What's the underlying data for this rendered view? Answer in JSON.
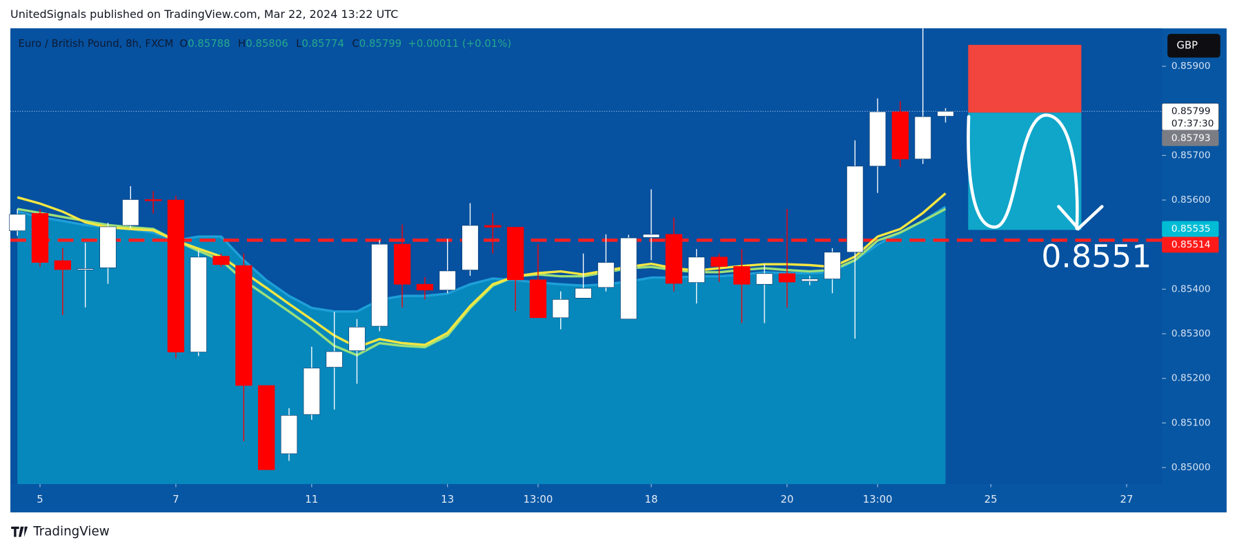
{
  "header": "UnitedSignals published on TradingView.com, Mar 22, 2024 13:22 UTC",
  "footer": "TradingView",
  "currency": "GBP",
  "countdown": "07:37:30",
  "chart_data": {
    "type": "candlestick",
    "title": "Euro / British Pound, 8h, FXCM",
    "legend": [
      {
        "key": "O",
        "value": "0.85788"
      },
      {
        "key": "H",
        "value": "0.85806"
      },
      {
        "key": "L",
        "value": "0.85774"
      },
      {
        "key": "C",
        "value": "0.85799"
      }
    ],
    "change": "+0.00011 (+0.01%)",
    "open": [
      0.85531,
      0.8557,
      0.85464,
      0.85446,
      0.85448,
      0.85543,
      0.85601,
      0.856,
      0.85259,
      0.85474,
      0.85453,
      0.85184,
      0.85031,
      0.85119,
      0.85225,
      0.85262,
      0.85317,
      0.85501,
      0.85411,
      0.85398,
      0.85443,
      0.85543,
      0.85539,
      0.85421,
      0.85336,
      0.8538,
      0.85404,
      0.85333,
      0.85516,
      0.85523,
      0.85415,
      0.85472,
      0.85451,
      0.85411,
      0.85435,
      0.85418,
      0.85423,
      0.85483,
      0.85676,
      0.85798,
      0.85692,
      0.85788
    ],
    "high": [
      0.8558,
      0.8558,
      0.85492,
      0.85504,
      0.85549,
      0.85631,
      0.8562,
      0.8561,
      0.85487,
      0.8548,
      0.8548,
      0.85184,
      0.85133,
      0.85271,
      0.85349,
      0.85333,
      0.8551,
      0.85545,
      0.85427,
      0.85513,
      0.85593,
      0.85571,
      0.85539,
      0.85501,
      0.85395,
      0.8548,
      0.85523,
      0.85522,
      0.85624,
      0.85561,
      0.8549,
      0.8548,
      0.8549,
      0.85457,
      0.8558,
      0.8543,
      0.85492,
      0.85734,
      0.85828,
      0.85822,
      0.85985,
      0.85806
    ],
    "low": [
      0.8552,
      0.8545,
      0.85342,
      0.85359,
      0.85412,
      0.85536,
      0.8557,
      0.85245,
      0.8525,
      0.8545,
      0.85059,
      0.84995,
      0.85015,
      0.85107,
      0.8513,
      0.85188,
      0.85306,
      0.85359,
      0.85377,
      0.85391,
      0.8543,
      0.8548,
      0.85351,
      0.85336,
      0.8531,
      0.8538,
      0.85395,
      0.85333,
      0.85465,
      0.85395,
      0.85368,
      0.85416,
      0.85324,
      0.85324,
      0.85359,
      0.85409,
      0.85391,
      0.85289,
      0.85616,
      0.85674,
      0.85681,
      0.85774
    ],
    "close": [
      0.85568,
      0.8546,
      0.85444,
      0.85446,
      0.8554,
      0.85601,
      0.85599,
      0.85259,
      0.85472,
      0.85455,
      0.85184,
      0.84995,
      0.85117,
      0.85223,
      0.8526,
      0.85315,
      0.85501,
      0.85411,
      0.85398,
      0.85441,
      0.85543,
      0.85539,
      0.85421,
      0.85336,
      0.85377,
      0.85402,
      0.8546,
      0.85515,
      0.85523,
      0.85413,
      0.85472,
      0.85451,
      0.85411,
      0.85435,
      0.85416,
      0.85423,
      0.85483,
      0.85676,
      0.85798,
      0.85692,
      0.85787,
      0.85799
    ],
    "up_color": "#ffffff",
    "down_color": "#ff0000",
    "area": {
      "color": "#0788bc",
      "line_color": "#1e9fd8",
      "values": [
        0.85574,
        0.85562,
        0.85553,
        0.85544,
        0.85539,
        0.85535,
        0.85527,
        0.85509,
        0.85518,
        0.85518,
        0.85465,
        0.8542,
        0.85385,
        0.85358,
        0.8535,
        0.8535,
        0.85376,
        0.85385,
        0.85385,
        0.8539,
        0.85411,
        0.85424,
        0.8542,
        0.85415,
        0.85411,
        0.85408,
        0.85411,
        0.85417,
        0.85426,
        0.85426,
        0.85429,
        0.85429,
        0.85433,
        0.85438,
        0.85436,
        0.85436,
        0.85438,
        0.85465,
        0.855,
        0.85527,
        0.85553,
        0.85585
      ]
    },
    "lines": [
      {
        "color": "#9be07a",
        "values": [
          0.8558,
          0.85571,
          0.85562,
          0.85553,
          0.85544,
          0.85539,
          0.85535,
          0.85509,
          0.85486,
          0.85465,
          0.8542,
          0.85385,
          0.8535,
          0.85314,
          0.85273,
          0.85252,
          0.85279,
          0.85273,
          0.8527,
          0.85296,
          0.85358,
          0.85408,
          0.85429,
          0.85433,
          0.85429,
          0.85429,
          0.85438,
          0.85447,
          0.8545,
          0.85443,
          0.85438,
          0.85438,
          0.85443,
          0.85447,
          0.85443,
          0.8544,
          0.85443,
          0.85465,
          0.85509,
          0.85527,
          0.85553,
          0.8558
        ]
      },
      {
        "color": "#f5e642",
        "values": [
          0.85606,
          0.85592,
          0.85574,
          0.8555,
          0.85539,
          0.85535,
          0.85532,
          0.85509,
          0.85491,
          0.85473,
          0.85438,
          0.85403,
          0.85367,
          0.85332,
          0.85296,
          0.8527,
          0.85288,
          0.85279,
          0.85275,
          0.85302,
          0.85362,
          0.85411,
          0.85429,
          0.85436,
          0.8544,
          0.85433,
          0.85442,
          0.8545,
          0.85457,
          0.85447,
          0.85442,
          0.85447,
          0.85452,
          0.85456,
          0.85456,
          0.85454,
          0.8545,
          0.85473,
          0.85518,
          0.85535,
          0.85571,
          0.85615
        ]
      }
    ],
    "hline": {
      "value": 0.8551,
      "label": "0.8551",
      "color": "#ff2020"
    },
    "position": {
      "start": 42,
      "end": 47,
      "entry": 0.85796,
      "stop": 0.85948,
      "target": 0.85533,
      "stop_color": "#f2453d",
      "target_color": "#0fa6c9"
    },
    "xlim": [
      -0.31,
      50.56
    ],
    "ylim": [
      0.84963,
      0.85985
    ],
    "yticks": [
      {
        "value": 0.85,
        "label": "0.85000"
      },
      {
        "value": 0.851,
        "label": "0.85100"
      },
      {
        "value": 0.852,
        "label": "0.85200"
      },
      {
        "value": 0.853,
        "label": "0.85300"
      },
      {
        "value": 0.854,
        "label": "0.85400"
      },
      {
        "value": 0.856,
        "label": "0.85600"
      },
      {
        "value": 0.857,
        "label": "0.85700"
      },
      {
        "value": 0.859,
        "label": "0.85900"
      }
    ],
    "xticks": [
      {
        "value": 1,
        "label": "5"
      },
      {
        "value": 7,
        "label": "7"
      },
      {
        "value": 13,
        "label": "11"
      },
      {
        "value": 19,
        "label": "13"
      },
      {
        "value": 23,
        "label": "13:00"
      },
      {
        "value": 28,
        "label": "18"
      },
      {
        "value": 34,
        "label": "20"
      },
      {
        "value": 38,
        "label": "13:00"
      },
      {
        "value": 43,
        "label": "25"
      },
      {
        "value": 49,
        "label": "27"
      }
    ],
    "price_labels": [
      {
        "value": 0.85799,
        "label": "0.85799",
        "color": "#ffffff"
      },
      {
        "value": 0.85793,
        "label": "0.85793",
        "color": "#7a7d84"
      },
      {
        "value": 0.85535,
        "label": "0.85535",
        "color": "#00bcd4"
      },
      {
        "value": 0.85514,
        "label": "0.85514",
        "color": "#ff1a1a"
      }
    ]
  }
}
